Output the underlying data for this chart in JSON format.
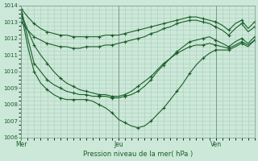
{
  "title": "",
  "xlabel": "Pression niveau de la mer( hPa )",
  "ylabel": "",
  "ylim": [
    1006.0,
    1014.0
  ],
  "yticks": [
    1006,
    1007,
    1008,
    1009,
    1010,
    1011,
    1012,
    1013,
    1014
  ],
  "bg_color": "#cce8d8",
  "line_color": "#1a5e2a",
  "grid_color": "#aacebb",
  "xtick_labels": [
    "Mer",
    "Jeu",
    "Ven"
  ],
  "xtick_positions": [
    0.0,
    0.4167,
    0.8333
  ],
  "vline_positions": [
    0.0,
    0.4167,
    0.8333
  ],
  "lines": [
    {
      "x": [
        0.0,
        0.028,
        0.055,
        0.083,
        0.111,
        0.139,
        0.167,
        0.194,
        0.222,
        0.25,
        0.278,
        0.306,
        0.333,
        0.361,
        0.389,
        0.417,
        0.444,
        0.472,
        0.5,
        0.528,
        0.556,
        0.583,
        0.611,
        0.639,
        0.667,
        0.694,
        0.722,
        0.75,
        0.778,
        0.806,
        0.833,
        0.861,
        0.889,
        0.917,
        0.944,
        0.972,
        1.0
      ],
      "y": [
        1013.8,
        1013.3,
        1012.9,
        1012.6,
        1012.4,
        1012.3,
        1012.2,
        1012.2,
        1012.1,
        1012.1,
        1012.1,
        1012.1,
        1012.1,
        1012.2,
        1012.2,
        1012.2,
        1012.3,
        1012.4,
        1012.5,
        1012.6,
        1012.7,
        1012.8,
        1012.9,
        1013.0,
        1013.1,
        1013.2,
        1013.3,
        1013.3,
        1013.2,
        1013.1,
        1013.0,
        1012.8,
        1012.5,
        1012.9,
        1013.1,
        1012.6,
        1013.0
      ]
    },
    {
      "x": [
        0.0,
        0.028,
        0.055,
        0.083,
        0.111,
        0.139,
        0.167,
        0.194,
        0.222,
        0.25,
        0.278,
        0.306,
        0.333,
        0.361,
        0.389,
        0.417,
        0.444,
        0.472,
        0.5,
        0.528,
        0.556,
        0.583,
        0.611,
        0.639,
        0.667,
        0.694,
        0.722,
        0.75,
        0.778,
        0.806,
        0.833,
        0.861,
        0.889,
        0.917,
        0.944,
        0.972,
        1.0
      ],
      "y": [
        1013.0,
        1012.5,
        1012.1,
        1011.9,
        1011.7,
        1011.6,
        1011.5,
        1011.5,
        1011.4,
        1011.4,
        1011.5,
        1011.5,
        1011.5,
        1011.6,
        1011.6,
        1011.7,
        1011.8,
        1011.9,
        1012.0,
        1012.1,
        1012.3,
        1012.4,
        1012.6,
        1012.7,
        1012.9,
        1013.0,
        1013.1,
        1013.1,
        1013.0,
        1012.9,
        1012.7,
        1012.5,
        1012.2,
        1012.6,
        1012.9,
        1012.4,
        1012.7
      ]
    },
    {
      "x": [
        0.0,
        0.028,
        0.055,
        0.083,
        0.111,
        0.139,
        0.167,
        0.194,
        0.222,
        0.25,
        0.278,
        0.306,
        0.333,
        0.361,
        0.389,
        0.417,
        0.444,
        0.472,
        0.5,
        0.528,
        0.556,
        0.583,
        0.611,
        0.639,
        0.667,
        0.694,
        0.722,
        0.75,
        0.778,
        0.806,
        0.833,
        0.861,
        0.889,
        0.917,
        0.944,
        0.972,
        1.0
      ],
      "y": [
        1013.5,
        1012.5,
        1011.6,
        1011.0,
        1010.5,
        1010.0,
        1009.6,
        1009.3,
        1009.1,
        1008.9,
        1008.8,
        1008.7,
        1008.6,
        1008.6,
        1008.5,
        1008.5,
        1008.6,
        1008.8,
        1009.1,
        1009.4,
        1009.7,
        1010.1,
        1010.5,
        1010.8,
        1011.1,
        1011.3,
        1011.5,
        1011.6,
        1011.6,
        1011.7,
        1011.6,
        1011.5,
        1011.4,
        1011.6,
        1011.8,
        1011.6,
        1011.9
      ]
    },
    {
      "x": [
        0.0,
        0.028,
        0.055,
        0.083,
        0.111,
        0.139,
        0.167,
        0.194,
        0.222,
        0.25,
        0.278,
        0.306,
        0.333,
        0.361,
        0.389,
        0.417,
        0.444,
        0.472,
        0.5,
        0.528,
        0.556,
        0.583,
        0.611,
        0.639,
        0.667,
        0.694,
        0.722,
        0.75,
        0.778,
        0.806,
        0.833,
        0.861,
        0.889,
        0.917,
        0.944,
        0.972,
        1.0
      ],
      "y": [
        1013.8,
        1012.0,
        1010.5,
        1010.0,
        1009.5,
        1009.2,
        1009.0,
        1008.8,
        1008.7,
        1008.6,
        1008.6,
        1008.5,
        1008.5,
        1008.5,
        1008.4,
        1008.4,
        1008.5,
        1008.6,
        1008.8,
        1009.1,
        1009.5,
        1010.0,
        1010.4,
        1010.8,
        1011.2,
        1011.5,
        1011.8,
        1011.9,
        1012.0,
        1012.1,
        1011.9,
        1011.7,
        1011.5,
        1011.8,
        1012.0,
        1011.7,
        1012.1
      ]
    },
    {
      "x": [
        0.0,
        0.028,
        0.055,
        0.083,
        0.111,
        0.139,
        0.167,
        0.194,
        0.222,
        0.25,
        0.278,
        0.306,
        0.333,
        0.361,
        0.389,
        0.417,
        0.444,
        0.472,
        0.5,
        0.528,
        0.556,
        0.583,
        0.611,
        0.639,
        0.667,
        0.694,
        0.722,
        0.75,
        0.778,
        0.806,
        0.833,
        0.861,
        0.889,
        0.917,
        0.944,
        0.972,
        1.0
      ],
      "y": [
        1013.5,
        1011.5,
        1010.0,
        1009.3,
        1008.9,
        1008.6,
        1008.4,
        1008.3,
        1008.3,
        1008.3,
        1008.3,
        1008.2,
        1008.0,
        1007.8,
        1007.5,
        1007.1,
        1006.9,
        1006.7,
        1006.6,
        1006.7,
        1007.0,
        1007.4,
        1007.8,
        1008.3,
        1008.8,
        1009.3,
        1009.9,
        1010.4,
        1010.8,
        1011.1,
        1011.3,
        1011.3,
        1011.3,
        1011.5,
        1011.7,
        1011.5,
        1011.9
      ]
    }
  ]
}
